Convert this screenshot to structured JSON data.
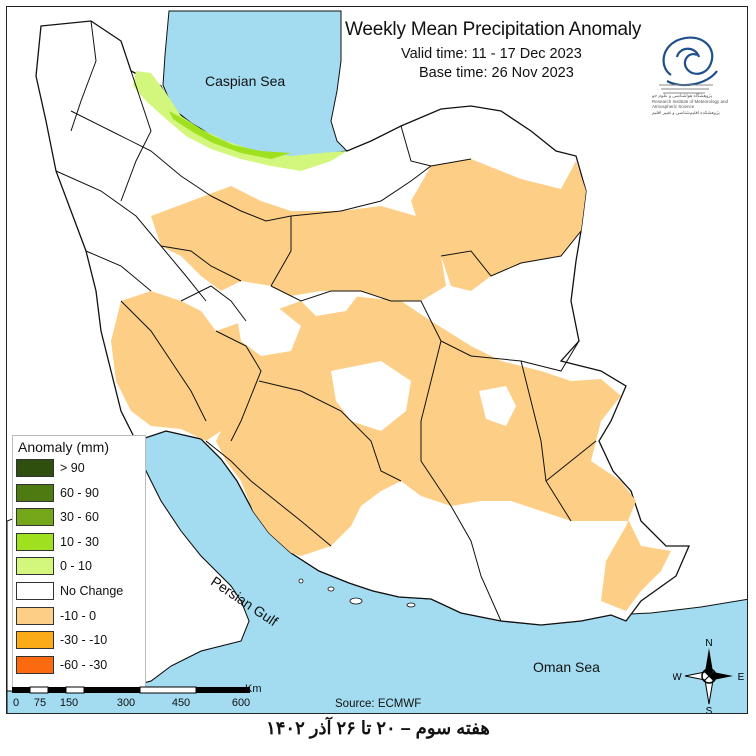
{
  "map": {
    "title": "Weekly Mean Precipitation Anomaly",
    "valid_time": "Valid time: 11 - 17 Dec 2023",
    "base_time": "Base time: 26 Nov 2023",
    "source": "Source: ECMWF",
    "caption_fa": "هفته سوم – ۲۰ تا ۲۶ آذر ۱۴۰۲",
    "logo_text": "پژوهشگاه هواشناسی و علوم جو",
    "logo_text_en": "Research Institute of Meteorology and Atmospheric Science",
    "logo_text_fa2": "پژوهشکده اقلیم‌شناسی و تغییر اقلیم"
  },
  "sea_labels": {
    "caspian": "Caspian Sea",
    "gulf": "Persian Gulf",
    "oman": "Oman Sea"
  },
  "legend": {
    "title": "Anomaly (mm)",
    "items": [
      {
        "label": "> 90",
        "color": "#2f4f0f"
      },
      {
        "label": "60 - 90",
        "color": "#4e7a12"
      },
      {
        "label": "30 - 60",
        "color": "#74a81a"
      },
      {
        "label": "10 - 30",
        "color": "#9fe01f"
      },
      {
        "label": "0 - 10",
        "color": "#d2f77c"
      },
      {
        "label": "No Change",
        "color": "#ffffff"
      },
      {
        "label": "-10 - 0",
        "color": "#fdcf86"
      },
      {
        "label": "-30 - -10",
        "color": "#fbab17"
      },
      {
        "label": "-60 - -30",
        "color": "#fb6a0e"
      }
    ]
  },
  "scale_bar": {
    "unit": "Km",
    "ticks": [
      "0",
      "75",
      "150",
      "300",
      "450",
      "600"
    ]
  },
  "compass": {
    "n": "N",
    "s": "S",
    "e": "E",
    "w": "W"
  },
  "colors": {
    "sea": "#a3dcf0",
    "land": "#ffffff",
    "border": "#111111"
  }
}
